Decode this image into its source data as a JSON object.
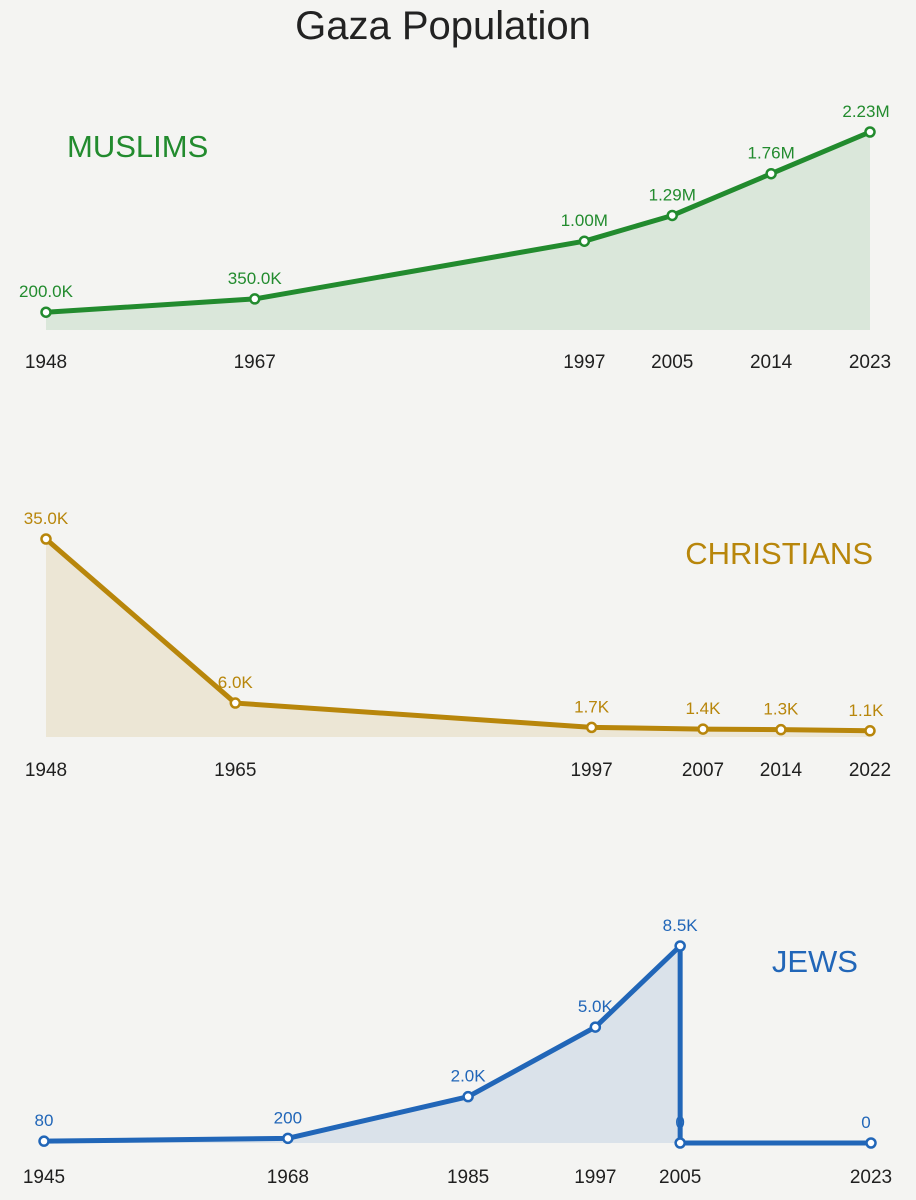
{
  "title": "Gaza Population",
  "colors": {
    "background": "#f4f4f2",
    "muslims": "#228b2e",
    "christians": "#b8860b",
    "jews": "#2166b8"
  },
  "chart_data": [
    {
      "type": "area",
      "title": "MUSLIMS",
      "color": "#228b2e",
      "x": [
        1948,
        1967,
        1997,
        2005,
        2014,
        2023
      ],
      "xlim": [
        1948,
        2023
      ],
      "values": [
        200000,
        350000,
        1000000,
        1290000,
        1760000,
        2230000
      ],
      "ylim": [
        0,
        2230000
      ],
      "tick_labels": [
        "1948",
        "1967",
        "1997",
        "2005",
        "2014",
        "2023"
      ],
      "value_labels": [
        "200.0K",
        "350.0K",
        "1.00M",
        "1.29M",
        "1.76M",
        "2.23M"
      ],
      "legend_position": "top-left"
    },
    {
      "type": "area",
      "title": "CHRISTIANS",
      "color": "#b8860b",
      "x": [
        1948,
        1965,
        1997,
        2007,
        2014,
        2022
      ],
      "xlim": [
        1948,
        2022
      ],
      "values": [
        35000,
        6000,
        1700,
        1400,
        1300,
        1100
      ],
      "ylim": [
        0,
        35000
      ],
      "tick_labels": [
        "1948",
        "1965",
        "1997",
        "2007",
        "2014",
        "2022"
      ],
      "value_labels": [
        "35.0K",
        "6.0K",
        "1.7K",
        "1.4K",
        "1.3K",
        "1.1K"
      ],
      "legend_position": "top-right"
    },
    {
      "type": "area",
      "title": "JEWS",
      "color": "#2166b8",
      "x": [
        1945,
        1968,
        1985,
        1997,
        2005,
        2005,
        2023
      ],
      "xlim": [
        1945,
        2023
      ],
      "values": [
        80,
        200,
        2000,
        5000,
        8500,
        0,
        0
      ],
      "ylim": [
        0,
        8500
      ],
      "tick_labels": [
        "1945",
        "1968",
        "1985",
        "1997",
        "2005",
        "2023"
      ],
      "value_labels": [
        "80",
        "200",
        "2.0K",
        "5.0K",
        "8.5K",
        "0",
        "0"
      ],
      "legend_position": "top-right"
    }
  ]
}
